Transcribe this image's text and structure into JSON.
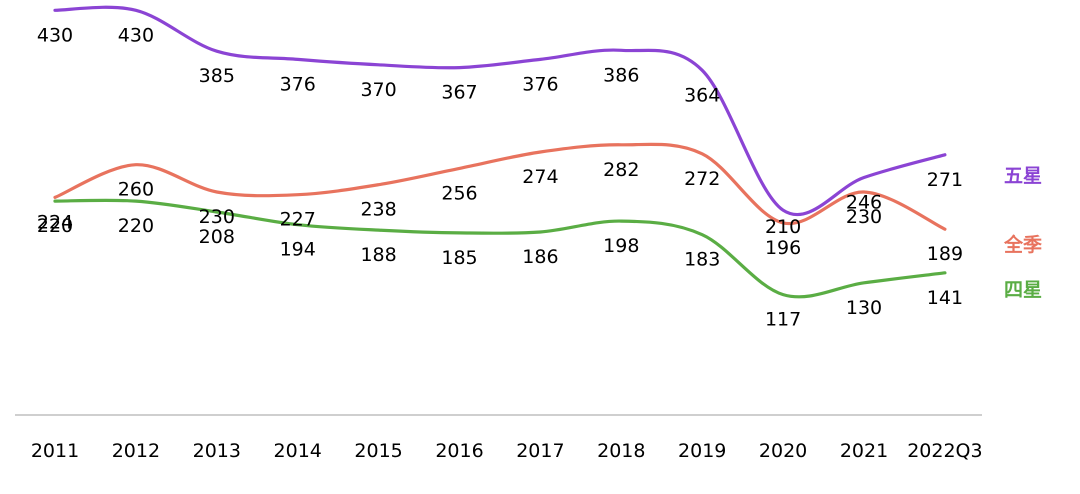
{
  "chart_data": {
    "type": "line",
    "title": "",
    "xlabel": "",
    "ylabel": "",
    "categories": [
      "2011",
      "2012",
      "2013",
      "2014",
      "2015",
      "2016",
      "2017",
      "2018",
      "2019",
      "2020",
      "2021",
      "2022Q3"
    ],
    "ylim": [
      0,
      460
    ],
    "grid": false,
    "legend": "right",
    "series": [
      {
        "name": "五星",
        "color": "#8b44d4",
        "values": [
          430,
          430,
          385,
          376,
          370,
          367,
          376,
          386,
          364,
          210,
          246,
          271
        ]
      },
      {
        "name": "全季",
        "color": "#e8735e",
        "values": [
          224,
          260,
          230,
          227,
          238,
          256,
          274,
          282,
          272,
          196,
          230,
          189
        ]
      },
      {
        "name": "四星",
        "color": "#5aad44",
        "values": [
          220,
          220,
          208,
          194,
          188,
          185,
          186,
          198,
          183,
          117,
          130,
          141
        ]
      }
    ]
  }
}
